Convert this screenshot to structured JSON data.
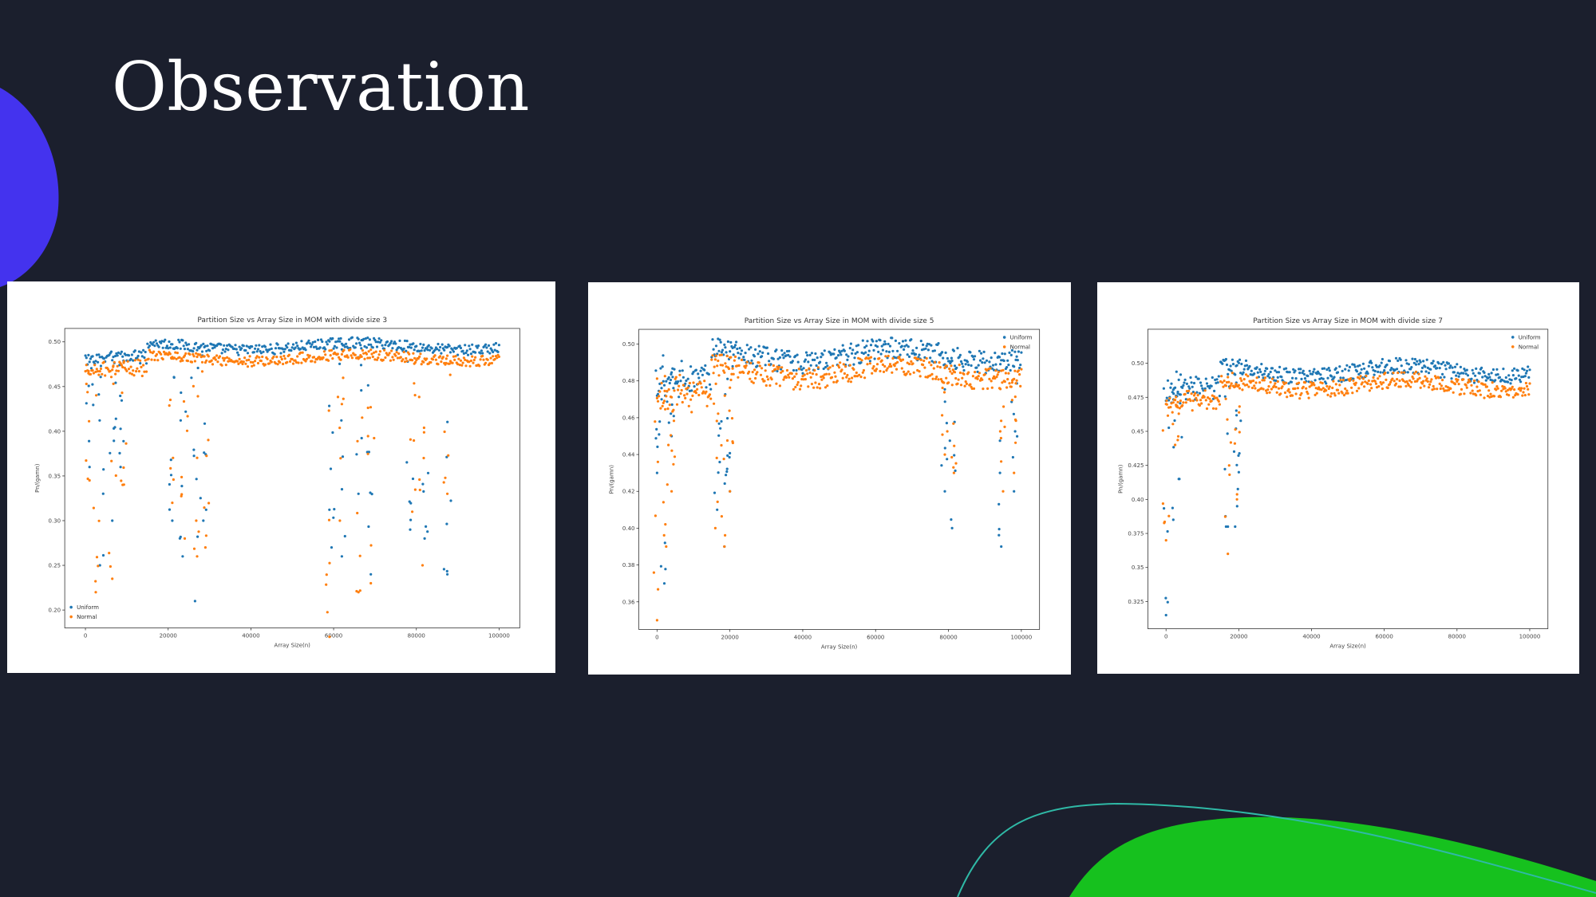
{
  "slide": {
    "title": "Observation",
    "colors": {
      "background": "#1b1f2d",
      "blob_left": "#4433ee",
      "blob_bottom": "#16c11e",
      "line_accent": "#2fb9a6"
    }
  },
  "chart_data": [
    {
      "type": "scatter",
      "title": "Partition Size vs Array Size in MOM with divide size 3",
      "xlabel": "Array Size(n)",
      "ylabel": "Pn/(gamn)",
      "xlim": [
        -5000,
        105000
      ],
      "ylim": [
        0.18,
        0.515
      ],
      "xticks": [
        0,
        20000,
        40000,
        60000,
        80000,
        100000
      ],
      "yticks": [
        0.2,
        0.25,
        0.3,
        0.35,
        0.4,
        0.45,
        0.5
      ],
      "legend_position": "bottom-left",
      "series": [
        {
          "name": "Uniform",
          "color": "#1f77b4",
          "baseline": 0.495,
          "dips": [
            [
              1000,
              0.36
            ],
            [
              3500,
              0.25
            ],
            [
              6500,
              0.3
            ],
            [
              8500,
              0.36
            ],
            [
              21000,
              0.3
            ],
            [
              23500,
              0.26
            ],
            [
              26500,
              0.21
            ],
            [
              28500,
              0.3
            ],
            [
              59500,
              0.27
            ],
            [
              62000,
              0.26
            ],
            [
              66000,
              0.33
            ],
            [
              69000,
              0.24
            ],
            [
              78500,
              0.29
            ],
            [
              82000,
              0.28
            ],
            [
              87500,
              0.24
            ]
          ],
          "points": []
        },
        {
          "name": "Normal",
          "color": "#ff7f0e",
          "baseline": 0.482,
          "dips": [
            [
              1000,
              0.345
            ],
            [
              2500,
              0.22
            ],
            [
              6500,
              0.235
            ],
            [
              9000,
              0.34
            ],
            [
              21000,
              0.32
            ],
            [
              24000,
              0.28
            ],
            [
              27000,
              0.26
            ],
            [
              29000,
              0.27
            ],
            [
              59000,
              0.17
            ],
            [
              61500,
              0.3
            ],
            [
              66000,
              0.22
            ],
            [
              69000,
              0.23
            ],
            [
              79000,
              0.31
            ],
            [
              81500,
              0.25
            ],
            [
              87500,
              0.33
            ]
          ],
          "points": []
        }
      ]
    },
    {
      "type": "scatter",
      "title": "Partition Size vs Array Size in MOM with divide size 5",
      "xlabel": "Array Size(n)",
      "ylabel": "Pn/(gamn)",
      "xlim": [
        -5000,
        105000
      ],
      "ylim": [
        0.345,
        0.508
      ],
      "xticks": [
        0,
        20000,
        40000,
        60000,
        80000,
        100000
      ],
      "yticks": [
        0.36,
        0.38,
        0.4,
        0.42,
        0.44,
        0.46,
        0.48,
        0.5
      ],
      "legend_position": "top-right",
      "series": [
        {
          "name": "Uniform",
          "color": "#1f77b4",
          "baseline": 0.494,
          "dips": [
            [
              0,
              0.43
            ],
            [
              2000,
              0.37
            ],
            [
              4000,
              0.45
            ],
            [
              16500,
              0.41
            ],
            [
              18500,
              0.39
            ],
            [
              20000,
              0.42
            ],
            [
              79000,
              0.42
            ],
            [
              81000,
              0.4
            ],
            [
              94500,
              0.39
            ],
            [
              98000,
              0.42
            ]
          ],
          "points": []
        },
        {
          "name": "Normal",
          "color": "#ff7f0e",
          "baseline": 0.485,
          "dips": [
            [
              0,
              0.35
            ],
            [
              2500,
              0.39
            ],
            [
              4000,
              0.42
            ],
            [
              16000,
              0.4
            ],
            [
              18500,
              0.39
            ],
            [
              20000,
              0.42
            ],
            [
              79000,
              0.44
            ],
            [
              81500,
              0.43
            ],
            [
              95000,
              0.42
            ],
            [
              98000,
              0.43
            ]
          ],
          "points": []
        }
      ]
    },
    {
      "type": "scatter",
      "title": "Partition Size vs Array Size in MOM with divide size 7",
      "xlabel": "Array Size(n)",
      "ylabel": "Pn/(gamn)",
      "xlim": [
        -5000,
        105000
      ],
      "ylim": [
        0.305,
        0.525
      ],
      "xticks": [
        0,
        20000,
        40000,
        60000,
        80000,
        100000
      ],
      "yticks": [
        0.325,
        0.35,
        0.375,
        0.4,
        0.425,
        0.45,
        0.475,
        0.5
      ],
      "legend_position": "top-right",
      "series": [
        {
          "name": "Uniform",
          "color": "#1f77b4",
          "baseline": 0.494,
          "dips": [
            [
              0,
              0.315
            ],
            [
              2000,
              0.385
            ],
            [
              3500,
              0.415
            ],
            [
              17000,
              0.38
            ],
            [
              19000,
              0.38
            ],
            [
              20000,
              0.42
            ]
          ],
          "points": []
        },
        {
          "name": "Normal",
          "color": "#ff7f0e",
          "baseline": 0.484,
          "dips": [
            [
              0,
              0.37
            ],
            [
              2500,
              0.44
            ],
            [
              17000,
              0.36
            ],
            [
              19500,
              0.4
            ]
          ],
          "points": []
        }
      ]
    }
  ]
}
